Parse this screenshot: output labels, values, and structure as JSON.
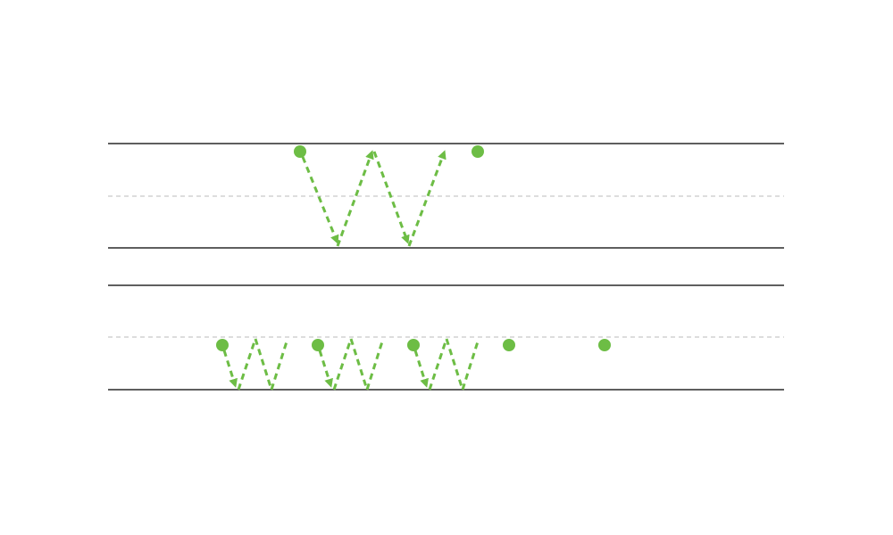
{
  "diagram": {
    "description_kind": "handwriting-practice-lines",
    "colors": {
      "accent": "#6dbd45",
      "baseline": "#2a2a2a",
      "midline": "#bbbbbb",
      "background": "#ffffff"
    },
    "rows": [
      {
        "id": "upper",
        "letter_shape": "W",
        "start_dot_count": 1,
        "end_dot_count": 1,
        "extra_dots": 0
      },
      {
        "id": "lower",
        "letter_shape": "w",
        "letter_count": 3,
        "trailing_dots": 2
      }
    ]
  }
}
